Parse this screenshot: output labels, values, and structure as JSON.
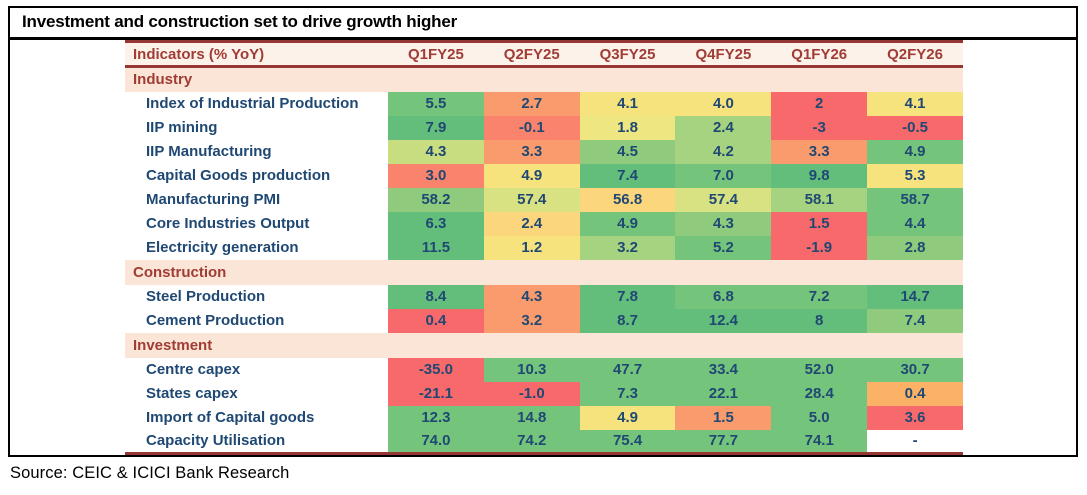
{
  "title": "Investment and construction set to drive growth higher",
  "source": "Source: CEIC & ICICI Bank Research",
  "colors": {
    "accent_line_dark_red": "#953735",
    "header_text_red": "#A03C36",
    "section_row_bg": "#FBE5D6",
    "header_row_bg": "#FDF2EA",
    "label_text_navy": "#1F4873",
    "frame_border": "#000000"
  },
  "palette": {
    "g1": "#63BE7B",
    "g2": "#74C47C",
    "g3": "#8FCA7D",
    "g4": "#A6D37F",
    "yg": "#C7DD80",
    "pyg": "#D9E282",
    "y2": "#EDE681",
    "y1": "#F7E37E",
    "yo": "#FBD67C",
    "o2": "#FBB267",
    "o1": "#F99B6C",
    "or": "#F9836D",
    "r": "#F8696B",
    "w": "#FFFFFF"
  },
  "chart_data": {
    "type": "table",
    "title": "Investment and construction set to drive growth higher",
    "header_label": "Indicators (% YoY)",
    "columns": [
      "Q1FY25",
      "Q2FY25",
      "Q3FY25",
      "Q4FY25",
      "Q1FY26",
      "Q2FY26"
    ],
    "legend": "cell colors are a red-yellow-green heatmap scale (red = weak, green = strong)",
    "rows": [
      {
        "section": "Industry"
      },
      {
        "label": "Index of Industrial Production",
        "values": [
          "5.5",
          "2.7",
          "4.1",
          "4.0",
          "2",
          "4.1"
        ],
        "cell_colors": [
          "g2",
          "o1",
          "y1",
          "y1",
          "r",
          "y1"
        ]
      },
      {
        "label": "IIP mining",
        "values": [
          "7.9",
          "-0.1",
          "1.8",
          "2.4",
          "-3",
          "-0.5"
        ],
        "cell_colors": [
          "g1",
          "or",
          "y2",
          "g4",
          "r",
          "r"
        ]
      },
      {
        "label": "IIP Manufacturing",
        "values": [
          "4.3",
          "3.3",
          "4.5",
          "4.2",
          "3.3",
          "4.9"
        ],
        "cell_colors": [
          "yg",
          "o1",
          "g3",
          "g4",
          "o1",
          "g2"
        ]
      },
      {
        "label": "Capital Goods production",
        "values": [
          "3.0",
          "4.9",
          "7.4",
          "7.0",
          "9.8",
          "5.3"
        ],
        "cell_colors": [
          "or",
          "y1",
          "g1",
          "g2",
          "g1",
          "y1"
        ]
      },
      {
        "label": "Manufacturing PMI",
        "values": [
          "58.2",
          "57.4",
          "56.8",
          "57.4",
          "58.1",
          "58.7"
        ],
        "cell_colors": [
          "g3",
          "pyg",
          "yo",
          "pyg",
          "g4",
          "g2"
        ]
      },
      {
        "label": "Core Industries Output",
        "values": [
          "6.3",
          "2.4",
          "4.9",
          "4.3",
          "1.5",
          "4.4"
        ],
        "cell_colors": [
          "g1",
          "yo",
          "g2",
          "g3",
          "r",
          "g2"
        ]
      },
      {
        "label": "Electricity generation",
        "values": [
          "11.5",
          "1.2",
          "3.2",
          "5.2",
          "-1.9",
          "2.8"
        ],
        "cell_colors": [
          "g1",
          "y1",
          "g4",
          "g2",
          "r",
          "g3"
        ]
      },
      {
        "section": "Construction"
      },
      {
        "label": "Steel Production",
        "values": [
          "8.4",
          "4.3",
          "7.8",
          "6.8",
          "7.2",
          "14.7"
        ],
        "cell_colors": [
          "g1",
          "o1",
          "g1",
          "g2",
          "g2",
          "g1"
        ]
      },
      {
        "label": "Cement Production",
        "values": [
          "0.4",
          "3.2",
          "8.7",
          "12.4",
          "8",
          "7.4"
        ],
        "cell_colors": [
          "r",
          "o1",
          "g1",
          "g1",
          "g1",
          "g3"
        ]
      },
      {
        "section": "Investment"
      },
      {
        "label": "Centre capex",
        "values": [
          "-35.0",
          "10.3",
          "47.7",
          "33.4",
          "52.0",
          "30.7"
        ],
        "cell_colors": [
          "r",
          "g2",
          "g2",
          "g2",
          "g2",
          "g2"
        ]
      },
      {
        "label": "States capex",
        "values": [
          "-21.1",
          "-1.0",
          "7.3",
          "22.1",
          "28.4",
          "0.4"
        ],
        "cell_colors": [
          "r",
          "r",
          "g2",
          "g2",
          "g2",
          "o2"
        ]
      },
      {
        "label": "Import of Capital goods",
        "values": [
          "12.3",
          "14.8",
          "4.9",
          "1.5",
          "5.0",
          "3.6"
        ],
        "cell_colors": [
          "g2",
          "g2",
          "y1",
          "o1",
          "g2",
          "r"
        ]
      },
      {
        "label": "Capacity Utilisation",
        "values": [
          "74.0",
          "74.2",
          "75.4",
          "77.7",
          "74.1",
          "-"
        ],
        "cell_colors": [
          "g2",
          "g2",
          "g2",
          "g2",
          "g2",
          "w"
        ]
      }
    ]
  }
}
